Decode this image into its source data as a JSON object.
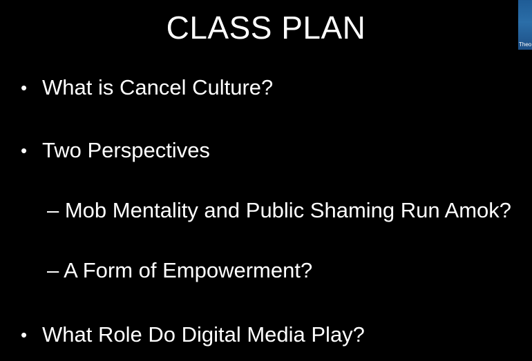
{
  "slide": {
    "title": "CLASS PLAN",
    "bullet_glyph": "•",
    "items": [
      {
        "level": 1,
        "text": "What is Cancel Culture?"
      },
      {
        "level": 1,
        "text": "Two Perspectives"
      },
      {
        "level": 2,
        "text": "– Mob Mentality and Public Shaming Run Amok?"
      },
      {
        "level": 2,
        "text": "– A Form of Empowerment?"
      },
      {
        "level": 1,
        "text": "What Role Do Digital Media Play?"
      }
    ]
  },
  "video_thumbnail": {
    "label": "Theo"
  },
  "colors": {
    "background": "#000000",
    "text": "#ffffff",
    "thumbnail_blue": "#2b6ea8"
  }
}
